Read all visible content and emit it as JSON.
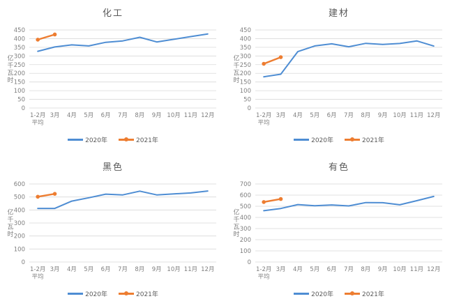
{
  "colors": {
    "background": "#ffffff",
    "series_2020": "#4e8dd3",
    "series_2021": "#ed7d31",
    "grid": "#d9d9d9",
    "title_text": "#595959",
    "axis_text": "#7f7f7f",
    "legend_text": "#595959"
  },
  "chart_data": [
    {
      "type": "line",
      "title": "化工",
      "xlabel": "",
      "ylabel": "亿千瓦时",
      "ylim": [
        0,
        450
      ],
      "ytick_step": 50,
      "grid": true,
      "legend_position": "bottom",
      "categories": [
        "1-2月\n平均",
        "3月",
        "4月",
        "5月",
        "6月",
        "7月",
        "8月",
        "9月",
        "10月",
        "11月",
        "12月"
      ],
      "series": [
        {
          "name": "2020年",
          "color": "#4e8dd3",
          "marker": false,
          "values": [
            327,
            352,
            364,
            358,
            379,
            387,
            408,
            381,
            396,
            412,
            427
          ]
        },
        {
          "name": "2021年",
          "color": "#ed7d31",
          "marker": true,
          "values": [
            394,
            424,
            null,
            null,
            null,
            null,
            null,
            null,
            null,
            null,
            null
          ]
        }
      ]
    },
    {
      "type": "line",
      "title": "建材",
      "xlabel": "",
      "ylabel": "亿千瓦时",
      "ylim": [
        0,
        450
      ],
      "ytick_step": 50,
      "grid": true,
      "legend_position": "bottom",
      "categories": [
        "1-2月\n平均",
        "3月",
        "4月",
        "5月",
        "6月",
        "7月",
        "8月",
        "9月",
        "10月",
        "11月",
        "12月"
      ],
      "series": [
        {
          "name": "2020年",
          "color": "#4e8dd3",
          "marker": false,
          "values": [
            180,
            195,
            325,
            358,
            370,
            353,
            373,
            367,
            372,
            387,
            357
          ]
        },
        {
          "name": "2021年",
          "color": "#ed7d31",
          "marker": true,
          "values": [
            255,
            293,
            null,
            null,
            null,
            null,
            null,
            null,
            null,
            null,
            null
          ]
        }
      ]
    },
    {
      "type": "line",
      "title": "黑色",
      "xlabel": "",
      "ylabel": "亿千瓦时",
      "ylim": [
        0,
        600
      ],
      "ytick_step": 100,
      "grid": true,
      "legend_position": "bottom",
      "categories": [
        "1-2月\n平均",
        "3月",
        "4月",
        "5月",
        "6月",
        "7月",
        "8月",
        "9月",
        "10月",
        "11月",
        "12月"
      ],
      "series": [
        {
          "name": "2020年",
          "color": "#4e8dd3",
          "marker": false,
          "values": [
            412,
            412,
            468,
            494,
            522,
            516,
            545,
            516,
            524,
            531,
            546
          ]
        },
        {
          "name": "2021年",
          "color": "#ed7d31",
          "marker": true,
          "values": [
            502,
            524,
            null,
            null,
            null,
            null,
            null,
            null,
            null,
            null,
            null
          ]
        }
      ]
    },
    {
      "type": "line",
      "title": "有色",
      "xlabel": "",
      "ylabel": "亿千瓦时",
      "ylim": [
        0,
        700
      ],
      "ytick_step": 100,
      "grid": true,
      "legend_position": "bottom",
      "categories": [
        "1-2月\n平均",
        "3月",
        "4月",
        "5月",
        "6月",
        "7月",
        "8月",
        "9月",
        "10月",
        "11月",
        "12月"
      ],
      "series": [
        {
          "name": "2020年",
          "color": "#4e8dd3",
          "marker": false,
          "values": [
            460,
            480,
            515,
            505,
            512,
            503,
            533,
            532,
            513,
            550,
            588
          ]
        },
        {
          "name": "2021年",
          "color": "#ed7d31",
          "marker": true,
          "values": [
            538,
            565,
            null,
            null,
            null,
            null,
            null,
            null,
            null,
            null,
            null
          ]
        }
      ]
    }
  ]
}
